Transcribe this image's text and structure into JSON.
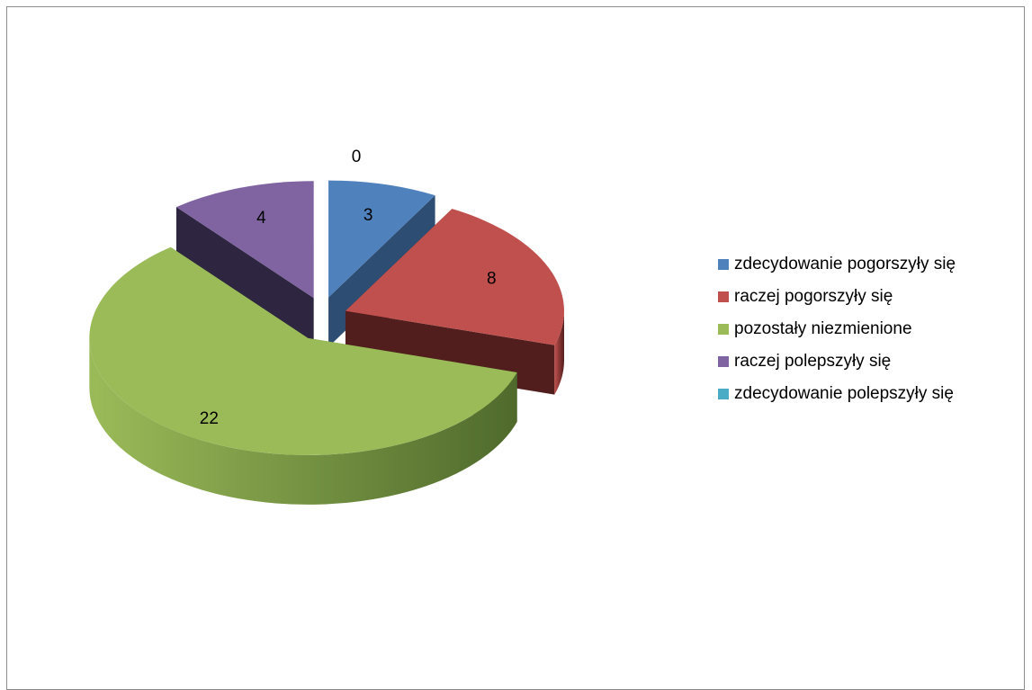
{
  "chart_data": {
    "type": "pie",
    "categories": [
      "zdecydowanie pogorszyły się",
      "raczej pogorszyły się",
      "pozostały niezmienione",
      "raczej polepszyły się",
      "zdecydowanie polepszyły się"
    ],
    "values": [
      3,
      8,
      22,
      4,
      0
    ],
    "data_labels": [
      "3",
      "8",
      "22",
      "4",
      "0"
    ],
    "colors": [
      "#4f81bd",
      "#c0504d",
      "#9bbb59",
      "#8064a2",
      "#4bacc6"
    ],
    "side_colors": [
      "#2e4d73",
      "#511e1d",
      "#4f6a2c",
      "#2e2640",
      "#2b6b7a"
    ],
    "legend_position": "right",
    "exploded": true,
    "style": "3d"
  }
}
